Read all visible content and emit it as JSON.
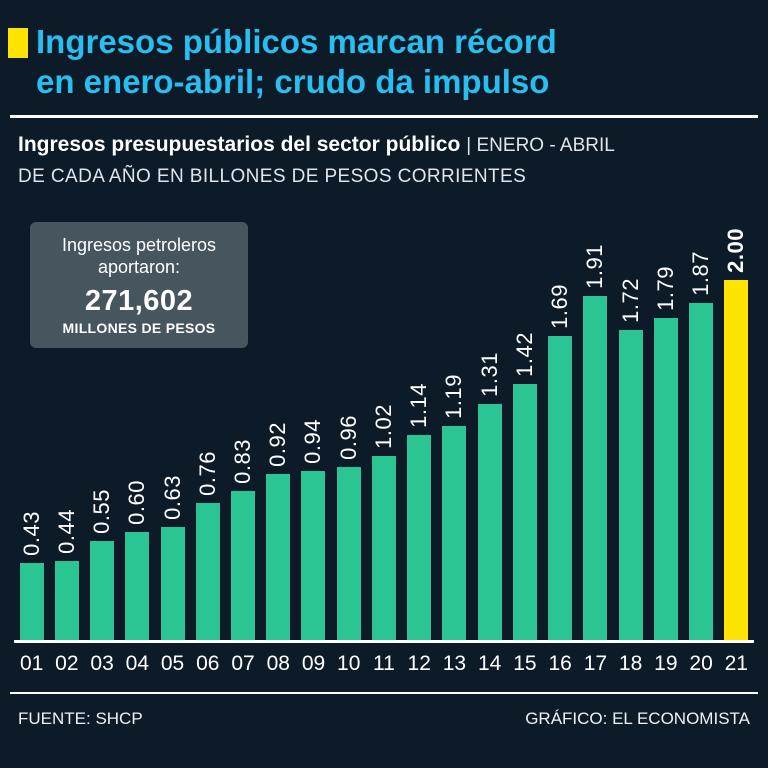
{
  "header": {
    "title_line1": "Ingresos públicos marcan récord",
    "title_line2": "en enero-abril; crudo da impulso"
  },
  "subtitle": {
    "bold": "Ingresos presupuestarios del sector público",
    "rest": "| ENERO - ABRIL",
    "line2": "DE CADA AÑO EN BILLONES DE PESOS CORRIENTES"
  },
  "callout": {
    "line1": "Ingresos petroleros",
    "line2": "aportaron:",
    "amount": "271,602",
    "unit": "MILLONES DE PESOS"
  },
  "chart_data": {
    "type": "bar",
    "title": "Ingresos presupuestarios del sector público, enero-abril de cada año",
    "ylabel": "Billones de pesos corrientes",
    "xlabel": "",
    "ylim": [
      0,
      2.0
    ],
    "grid": false,
    "categories": [
      "01",
      "02",
      "03",
      "04",
      "05",
      "06",
      "07",
      "08",
      "09",
      "10",
      "11",
      "12",
      "13",
      "14",
      "15",
      "16",
      "17",
      "18",
      "19",
      "20",
      "21"
    ],
    "values": [
      0.43,
      0.44,
      0.55,
      0.6,
      0.63,
      0.76,
      0.83,
      0.92,
      0.94,
      0.96,
      1.02,
      1.14,
      1.19,
      1.31,
      1.42,
      1.69,
      1.91,
      1.72,
      1.79,
      1.87,
      2.0
    ],
    "value_labels": [
      "0.43",
      "0.44",
      "0.55",
      "0.60",
      "0.63",
      "0.76",
      "0.83",
      "0.92",
      "0.94",
      "0.96",
      "1.02",
      "1.14",
      "1.19",
      "1.31",
      "1.42",
      "1.69",
      "1.91",
      "1.72",
      "1.79",
      "1.87",
      "2.00"
    ],
    "bar_color": "#2bc493",
    "highlight_color": "#ffe400",
    "highlight_index": 20
  },
  "footer": {
    "source": "FUENTE: SHCP",
    "credit": "GRÁFICO: EL ECONOMISTA"
  },
  "colors": {
    "background": "#0d1b29",
    "accent_cyan": "#29bef0",
    "accent_yellow": "#ffe400",
    "bar_green": "#2bc493"
  }
}
